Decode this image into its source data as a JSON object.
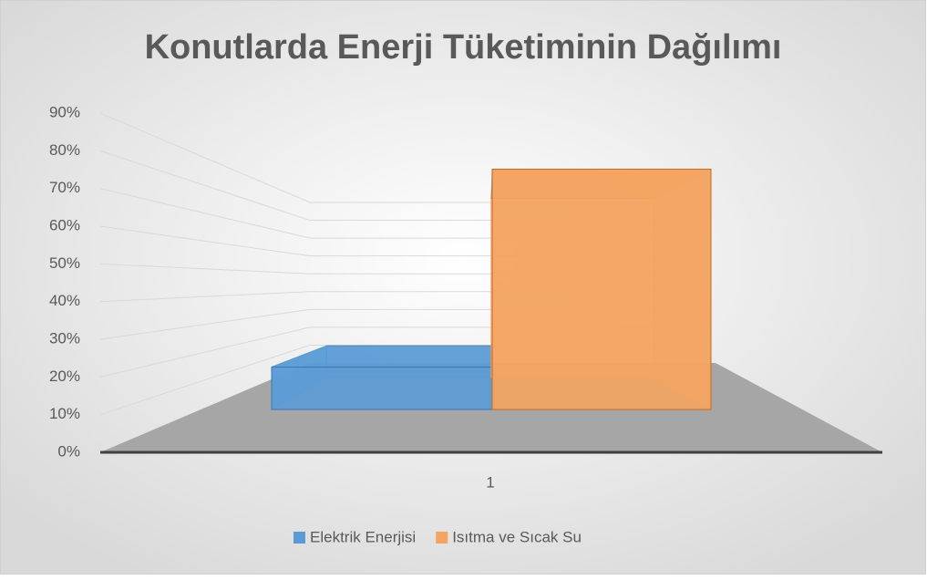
{
  "chart_data": {
    "type": "bar3d",
    "title": "Konutlarda Enerji Tüketiminin Dağılımı",
    "categories": [
      "1"
    ],
    "series": [
      {
        "name": "Elektrik Enerjisi",
        "color": "#5b9bd5",
        "values": [
          15
        ]
      },
      {
        "name": "Isıtma ve Sıcak Su",
        "color": "#f4a460",
        "values": [
          85
        ]
      }
    ],
    "ylim": [
      0,
      90
    ],
    "yticks": [
      {
        "value": 0,
        "label": "0%"
      },
      {
        "value": 10,
        "label": "10%"
      },
      {
        "value": 20,
        "label": "20%"
      },
      {
        "value": 30,
        "label": "30%"
      },
      {
        "value": 40,
        "label": "40%"
      },
      {
        "value": 50,
        "label": "50%"
      },
      {
        "value": 60,
        "label": "60%"
      },
      {
        "value": 70,
        "label": "70%"
      },
      {
        "value": 80,
        "label": "80%"
      },
      {
        "value": 90,
        "label": "90%"
      }
    ],
    "grid": true,
    "legend": "bottom"
  }
}
